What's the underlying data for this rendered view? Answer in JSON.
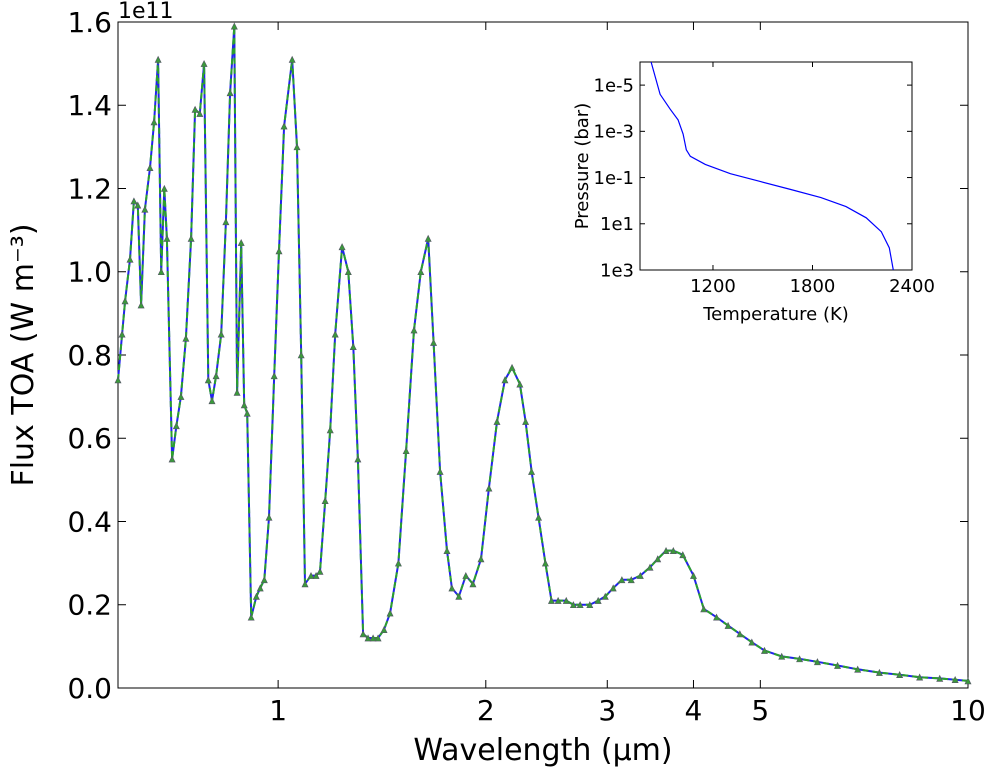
{
  "chart_data": [
    {
      "type": "line",
      "xlabel": "Wavelength (μm)",
      "ylabel": "Flux TOA (W m⁻³)",
      "y_offset_label": "1e11",
      "xscale": "log",
      "xlim": [
        0.586,
        10
      ],
      "xticks": [
        1,
        2,
        3,
        4,
        5,
        10
      ],
      "ylim": [
        0,
        1.6
      ],
      "yticks": [
        {
          "value": 0,
          "label": "0.0"
        },
        0.2,
        0.4,
        0.6,
        0.8,
        {
          "value": 1,
          "label": "1.0"
        },
        1.2,
        1.4,
        1.6
      ],
      "x": [
        0.586,
        0.594,
        0.6,
        0.61,
        0.618,
        0.626,
        0.633,
        0.641,
        0.652,
        0.661,
        0.67,
        0.677,
        0.684,
        0.69,
        0.702,
        0.712,
        0.723,
        0.735,
        0.748,
        0.758,
        0.77,
        0.781,
        0.792,
        0.802,
        0.813,
        0.827,
        0.84,
        0.852,
        0.864,
        0.872,
        0.884,
        0.893,
        0.902,
        0.914,
        0.93,
        0.942,
        0.955,
        0.97,
        0.987,
        1.003,
        1.02,
        1.048,
        1.065,
        1.08,
        1.094,
        1.116,
        1.135,
        1.15,
        1.17,
        1.19,
        1.21,
        1.238,
        1.264,
        1.285,
        1.305,
        1.328,
        1.35,
        1.373,
        1.396,
        1.424,
        1.453,
        1.494,
        1.533,
        1.574,
        1.61,
        1.65,
        1.68,
        1.717,
        1.757,
        1.786,
        1.828,
        1.871,
        1.916,
        1.968,
        2.021,
        2.076,
        2.132,
        2.183,
        2.241,
        2.284,
        2.33,
        2.385,
        2.44,
        2.49,
        2.546,
        2.616,
        2.679,
        2.74,
        2.83,
        2.91,
        2.98,
        3.06,
        3.15,
        3.25,
        3.35,
        3.46,
        3.55,
        3.65,
        3.74,
        3.86,
        4.0,
        4.14,
        4.32,
        4.49,
        4.67,
        4.86,
        5.07,
        5.37,
        5.7,
        6.05,
        6.47,
        6.92,
        7.44,
        7.96,
        8.51,
        9.1,
        9.58,
        10
      ],
      "series": [
        {
          "color": "#2222ee",
          "values": [
            0.74,
            0.85,
            0.93,
            1.03,
            1.17,
            1.16,
            0.92,
            1.15,
            1.25,
            1.36,
            1.51,
            1.0,
            1.2,
            1.08,
            0.55,
            0.63,
            0.7,
            0.84,
            1.08,
            1.39,
            1.38,
            1.5,
            0.74,
            0.69,
            0.75,
            0.85,
            1.12,
            1.43,
            1.59,
            0.71,
            1.07,
            0.68,
            0.66,
            0.17,
            0.22,
            0.24,
            0.26,
            0.41,
            0.75,
            1.05,
            1.35,
            1.51,
            1.3,
            0.8,
            0.25,
            0.27,
            0.27,
            0.28,
            0.45,
            0.62,
            0.85,
            1.06,
            1.0,
            0.82,
            0.55,
            0.13,
            0.12,
            0.12,
            0.12,
            0.14,
            0.18,
            0.3,
            0.57,
            0.86,
            1.0,
            1.08,
            0.83,
            0.52,
            0.33,
            0.24,
            0.22,
            0.27,
            0.25,
            0.31,
            0.48,
            0.64,
            0.74,
            0.77,
            0.73,
            0.64,
            0.52,
            0.41,
            0.3,
            0.21,
            0.21,
            0.21,
            0.2,
            0.2,
            0.2,
            0.21,
            0.22,
            0.24,
            0.26,
            0.26,
            0.27,
            0.29,
            0.31,
            0.33,
            0.33,
            0.32,
            0.27,
            0.19,
            0.17,
            0.15,
            0.13,
            0.11,
            0.09,
            0.076,
            0.07,
            0.063,
            0.054,
            0.045,
            0.037,
            0.032,
            0.026,
            0.023,
            0.02,
            0.017
          ]
        }
      ]
    },
    {
      "type": "line",
      "xlabel": "Temperature (K)",
      "ylabel": "Pressure (bar)",
      "xlim": [
        760,
        2400
      ],
      "xticks": [
        1200,
        1800,
        2400
      ],
      "yscale": "log",
      "ylim": [
        1000,
        1e-06
      ],
      "yticks": [
        {
          "value": 1e-05,
          "label": "1e-5"
        },
        {
          "value": 0.001,
          "label": "1e-3"
        },
        {
          "value": 0.1,
          "label": "1e-1"
        },
        {
          "value": 10,
          "label": "1e1"
        },
        {
          "value": 1000,
          "label": "1e3"
        }
      ],
      "x": [
        827,
        881,
        942,
        990,
        1020,
        1039,
        1063,
        1154,
        1305,
        1487,
        1669,
        1851,
        2002,
        2124,
        2215,
        2263,
        2287
      ],
      "series": [
        {
          "color": "#0000ff",
          "values": [
            1e-06,
            2.5e-05,
            0.00011,
            0.00032,
            0.0013,
            0.0063,
            0.012,
            0.027,
            0.068,
            0.15,
            0.33,
            0.74,
            1.8,
            5.5,
            22,
            110,
            1000
          ]
        }
      ]
    }
  ]
}
